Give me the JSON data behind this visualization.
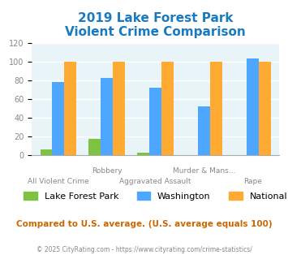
{
  "title_line1": "2019 Lake Forest Park",
  "title_line2": "Violent Crime Comparison",
  "categories": [
    "All Violent Crime",
    "Robbery",
    "Aggravated Assault",
    "Murder & Mans...",
    "Rape"
  ],
  "xtick_labels_row1": [
    "",
    "Robbery",
    "",
    "Murder & Mans...",
    ""
  ],
  "xtick_labels_row2": [
    "All Violent Crime",
    "",
    "Aggravated Assault",
    "",
    "Rape"
  ],
  "series": {
    "Lake Forest Park": [
      6,
      18,
      3,
      0,
      0
    ],
    "Washington": [
      78,
      83,
      72,
      52,
      103
    ],
    "National": [
      100,
      100,
      100,
      100,
      100
    ]
  },
  "colors": {
    "Lake Forest Park": "#7fc241",
    "Washington": "#4da6ff",
    "National": "#ffaa33"
  },
  "ylim": [
    0,
    120
  ],
  "yticks": [
    0,
    20,
    40,
    60,
    80,
    100,
    120
  ],
  "title_color": "#1a7abf",
  "title_fontsize": 11,
  "legend_fontsize": 8,
  "axis_label_color": "#888888",
  "background_color": "#e8f4f8",
  "footer_text": "Compared to U.S. average. (U.S. average equals 100)",
  "footer_color": "#cc6600",
  "copyright_text": "© 2025 CityRating.com - https://www.cityrating.com/crime-statistics/",
  "copyright_color": "#888888",
  "bar_width": 0.25,
  "grid_color": "#ffffff"
}
